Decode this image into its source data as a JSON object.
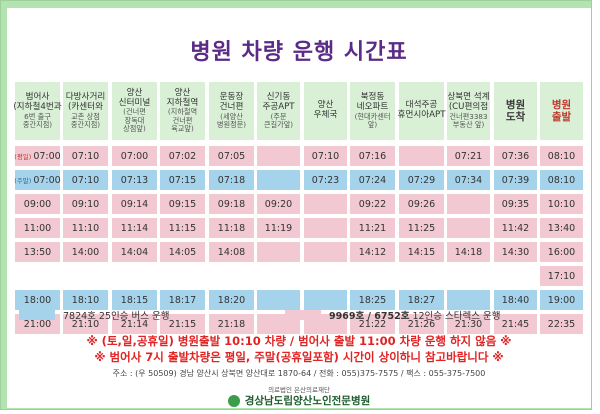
{
  "title": "병원 차량 운행 시간표",
  "headers": [
    {
      "lines": [
        "범어사",
        "(지하철4번과",
        "6번 출구",
        "중간지점)"
      ],
      "big": false
    },
    {
      "lines": [
        "다방사거리",
        "(카센터와",
        "교촌 상점",
        "중간지점)"
      ],
      "big": false
    },
    {
      "lines": [
        "양산",
        "신터미널",
        "(건너편",
        "장독대",
        "상점앞)"
      ],
      "big": false
    },
    {
      "lines": [
        "양산",
        "지하철역",
        "(지하철역",
        "건너편",
        "육교앞)"
      ],
      "big": false
    },
    {
      "lines": [
        "운동장",
        "건너편",
        "(세양산",
        "병원정문)"
      ],
      "big": false
    },
    {
      "lines": [
        "신기동",
        "주공APT",
        "(주문",
        "큰길가앞)"
      ],
      "big": false
    },
    {
      "lines": [
        "양산",
        "우체국"
      ],
      "big": false
    },
    {
      "lines": [
        "북정동",
        "네오파트",
        "(현대카센터",
        "앞)"
      ],
      "big": false
    },
    {
      "lines": [
        "대석주공",
        "휴먼시아APT"
      ],
      "big": false
    },
    {
      "lines": [
        "상북면 석계",
        "(CU편의점",
        "건너편3383",
        "부동산 앞)"
      ],
      "big": false
    },
    {
      "lines": [
        "병원",
        "도착"
      ],
      "big": true,
      "orange": false
    },
    {
      "lines": [
        "병원",
        "출발"
      ],
      "big": true,
      "orange": true
    }
  ],
  "rows": [
    {
      "color": "pink",
      "tag": "(평일)",
      "cells": [
        "07:00",
        "07:10",
        "07:00",
        "07:02",
        "07:05",
        "",
        "07:10",
        "07:16",
        "",
        "07:21",
        "07:36",
        "08:10"
      ]
    },
    {
      "color": "blue",
      "tag": "(주말)",
      "cells": [
        "07:00",
        "07:10",
        "07:13",
        "07:15",
        "07:18",
        "",
        "07:23",
        "07:24",
        "07:29",
        "07:34",
        "07:39",
        "08:10"
      ]
    },
    {
      "color": "pink",
      "tag": "",
      "cells": [
        "09:00",
        "09:10",
        "09:14",
        "09:15",
        "09:18",
        "09:20",
        "",
        "09:22",
        "09:26",
        "",
        "09:35",
        "10:10"
      ]
    },
    {
      "color": "pink",
      "tag": "",
      "cells": [
        "11:00",
        "11:10",
        "11:14",
        "11:15",
        "11:18",
        "11:19",
        "",
        "11:21",
        "11:25",
        "",
        "11:42",
        "13:40"
      ]
    },
    {
      "color": "pink",
      "tag": "",
      "cells": [
        "13:50",
        "14:00",
        "14:04",
        "14:05",
        "14:08",
        "",
        "",
        "14:12",
        "14:15",
        "14:18",
        "14:30",
        "16:00"
      ]
    },
    {
      "color": "none",
      "tag": "",
      "cells": [
        "",
        "",
        "",
        "",
        "",
        "",
        "",
        "",
        "",
        "",
        "",
        "17:10"
      ]
    },
    {
      "color": "blue",
      "tag": "",
      "cells": [
        "18:00",
        "18:10",
        "18:15",
        "18:17",
        "18:20",
        "",
        "",
        "18:25",
        "18:27",
        "",
        "18:40",
        "19:00"
      ]
    },
    {
      "color": "pink",
      "tag": "",
      "cells": [
        "21:00",
        "21:10",
        "21:14",
        "21:15",
        "21:18",
        "",
        "",
        "21:22",
        "21:26",
        "21:30",
        "21:45",
        "22:35"
      ]
    }
  ],
  "colors": {
    "blue": "#a6d3ec",
    "pink": "#f2c8d2",
    "header": "#d9f0d6",
    "frame": "#b3e3b0"
  },
  "legend": {
    "blue_label": "7824호  25인승 버스 운행",
    "pink_label_bold": "9969호 / 6752호",
    "pink_label_rest": " 12인승 스타렉스 운행"
  },
  "notes": {
    "line1": "※ (토,일,공휴일) 병원출발  10:10 차량 / 범어사 출발 11:00 차량 운행 하지 않음 ※",
    "line2": "※ 범어사 7시 출발차량은 평일, 주말(공휴일포함) 시간이 상이하니 참고바랍니다 ※"
  },
  "footer": {
    "address": "주소 : (우 50509) 경남 양산시 상북면 양산대로 1870-64 / 전화 : 055)375-7575 / 팩스 : 055-375-7500",
    "foundation": "의료법인 은산의료재단",
    "hospital": "경상남도립양산노인전문병원"
  }
}
